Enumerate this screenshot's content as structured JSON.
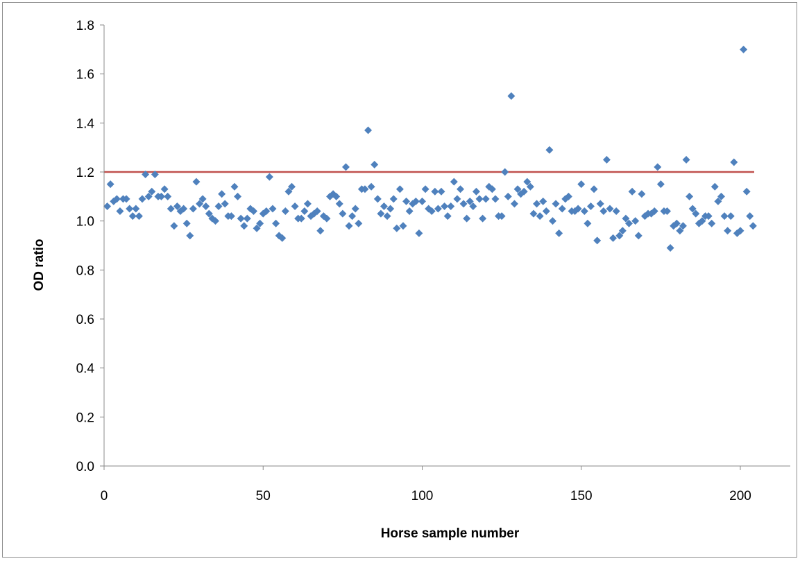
{
  "chart_data": {
    "type": "scatter",
    "title": "",
    "xlabel": "Horse sample number",
    "ylabel": "OD ratio",
    "xlim": [
      0,
      200
    ],
    "ylim": [
      0.0,
      1.8
    ],
    "x_ticks": [
      0,
      50,
      100,
      150,
      200
    ],
    "y_ticks": [
      0.0,
      0.2,
      0.4,
      0.6,
      0.8,
      1.0,
      1.2,
      1.4,
      1.6,
      1.8
    ],
    "x_tick_labels": [
      "0",
      "50",
      "100",
      "150",
      "200"
    ],
    "y_tick_labels": [
      "0.0",
      "0.2",
      "0.4",
      "0.6",
      "0.8",
      "1.0",
      "1.2",
      "1.4",
      "1.6",
      "1.8"
    ],
    "grid": false,
    "legend": "none",
    "marker_color": "#4F81BD",
    "threshold_color": "#C0504D",
    "threshold": 1.2,
    "series": [
      {
        "x": [
          1,
          2,
          3,
          4,
          5,
          6,
          7,
          8,
          9,
          10,
          11,
          12,
          13,
          14,
          15,
          16,
          17,
          18,
          19,
          20,
          21,
          22,
          23,
          24,
          25,
          26,
          27,
          28,
          29,
          30,
          31,
          32,
          33,
          34,
          35,
          36,
          37,
          38,
          39,
          40,
          41,
          42,
          43,
          44,
          45,
          46,
          47,
          48,
          49,
          50,
          51,
          52,
          53,
          54,
          55,
          56,
          57,
          58,
          59,
          60,
          61,
          62,
          63,
          64,
          65,
          66,
          67,
          68,
          69,
          70,
          71,
          72,
          73,
          74,
          75,
          76,
          77,
          78,
          79,
          80,
          81,
          82,
          83,
          84,
          85,
          86,
          87,
          88,
          89,
          90,
          91,
          92,
          93,
          94,
          95,
          96,
          97,
          98,
          99,
          100,
          101,
          102,
          103,
          104,
          105,
          106,
          107,
          108,
          109,
          110,
          111,
          112,
          113,
          114,
          115,
          116,
          117,
          118,
          119,
          120,
          121,
          122,
          123,
          124,
          125,
          126,
          127,
          128,
          129,
          130,
          131,
          132,
          133,
          134,
          135,
          136,
          137,
          138,
          139,
          140,
          141,
          142,
          143,
          144,
          145,
          146,
          147,
          148,
          149,
          150,
          151,
          152,
          153,
          154,
          155,
          156,
          157,
          158,
          159,
          160,
          161,
          162,
          163,
          164,
          165,
          166,
          167,
          168,
          169,
          170,
          171,
          172,
          173,
          174,
          175,
          176,
          177,
          178,
          179,
          180,
          181,
          182,
          183,
          184,
          185,
          186,
          187,
          188,
          189,
          190,
          191,
          192,
          193,
          194,
          195,
          196,
          197,
          198,
          199,
          200,
          201,
          202,
          203,
          204
        ],
        "y": [
          1.06,
          1.15,
          1.08,
          1.09,
          1.04,
          1.09,
          1.09,
          1.05,
          1.02,
          1.05,
          1.02,
          1.09,
          1.19,
          1.1,
          1.12,
          1.19,
          1.1,
          1.1,
          1.13,
          1.1,
          1.05,
          0.98,
          1.06,
          1.04,
          1.05,
          0.99,
          0.94,
          1.05,
          1.16,
          1.07,
          1.09,
          1.06,
          1.03,
          1.01,
          1.0,
          1.06,
          1.11,
          1.07,
          1.02,
          1.02,
          1.14,
          1.1,
          1.01,
          0.98,
          1.01,
          1.05,
          1.04,
          0.97,
          0.99,
          1.03,
          1.04,
          1.18,
          1.05,
          0.99,
          0.94,
          0.93,
          1.04,
          1.12,
          1.14,
          1.06,
          1.01,
          1.01,
          1.04,
          1.07,
          1.02,
          1.03,
          1.04,
          0.96,
          1.02,
          1.01,
          1.1,
          1.11,
          1.1,
          1.07,
          1.03,
          1.22,
          0.98,
          1.02,
          1.05,
          0.99,
          1.13,
          1.13,
          1.37,
          1.14,
          1.23,
          1.09,
          1.03,
          1.06,
          1.02,
          1.05,
          1.09,
          0.97,
          1.13,
          0.98,
          1.08,
          1.04,
          1.07,
          1.08,
          0.95,
          1.08,
          1.13,
          1.05,
          1.04,
          1.12,
          1.05,
          1.12,
          1.06,
          1.02,
          1.06,
          1.16,
          1.09,
          1.13,
          1.07,
          1.01,
          1.08,
          1.06,
          1.12,
          1.09,
          1.01,
          1.09,
          1.14,
          1.13,
          1.09,
          1.02,
          1.02,
          1.2,
          1.1,
          1.51,
          1.07,
          1.13,
          1.11,
          1.12,
          1.16,
          1.14,
          1.03,
          1.07,
          1.02,
          1.08,
          1.04,
          1.29,
          1.0,
          1.07,
          0.95,
          1.05,
          1.09,
          1.1,
          1.04,
          1.04,
          1.05,
          1.15,
          1.04,
          0.99,
          1.06,
          1.13,
          0.92,
          1.07,
          1.04,
          1.25,
          1.05,
          0.93,
          1.04,
          0.94,
          0.96,
          1.01,
          0.99,
          1.12,
          1.0,
          0.94,
          1.11,
          1.02,
          1.03,
          1.03,
          1.04,
          1.22,
          1.15,
          1.04,
          1.04,
          0.89,
          0.98,
          0.99,
          0.96,
          0.98,
          1.25,
          1.1,
          1.05,
          1.03,
          0.99,
          1.0,
          1.02,
          1.02,
          0.99,
          1.14,
          1.08,
          1.1,
          1.02,
          0.96,
          1.02,
          1.24,
          0.95,
          0.96,
          1.7,
          1.12,
          1.02,
          0.98
        ]
      }
    ]
  }
}
